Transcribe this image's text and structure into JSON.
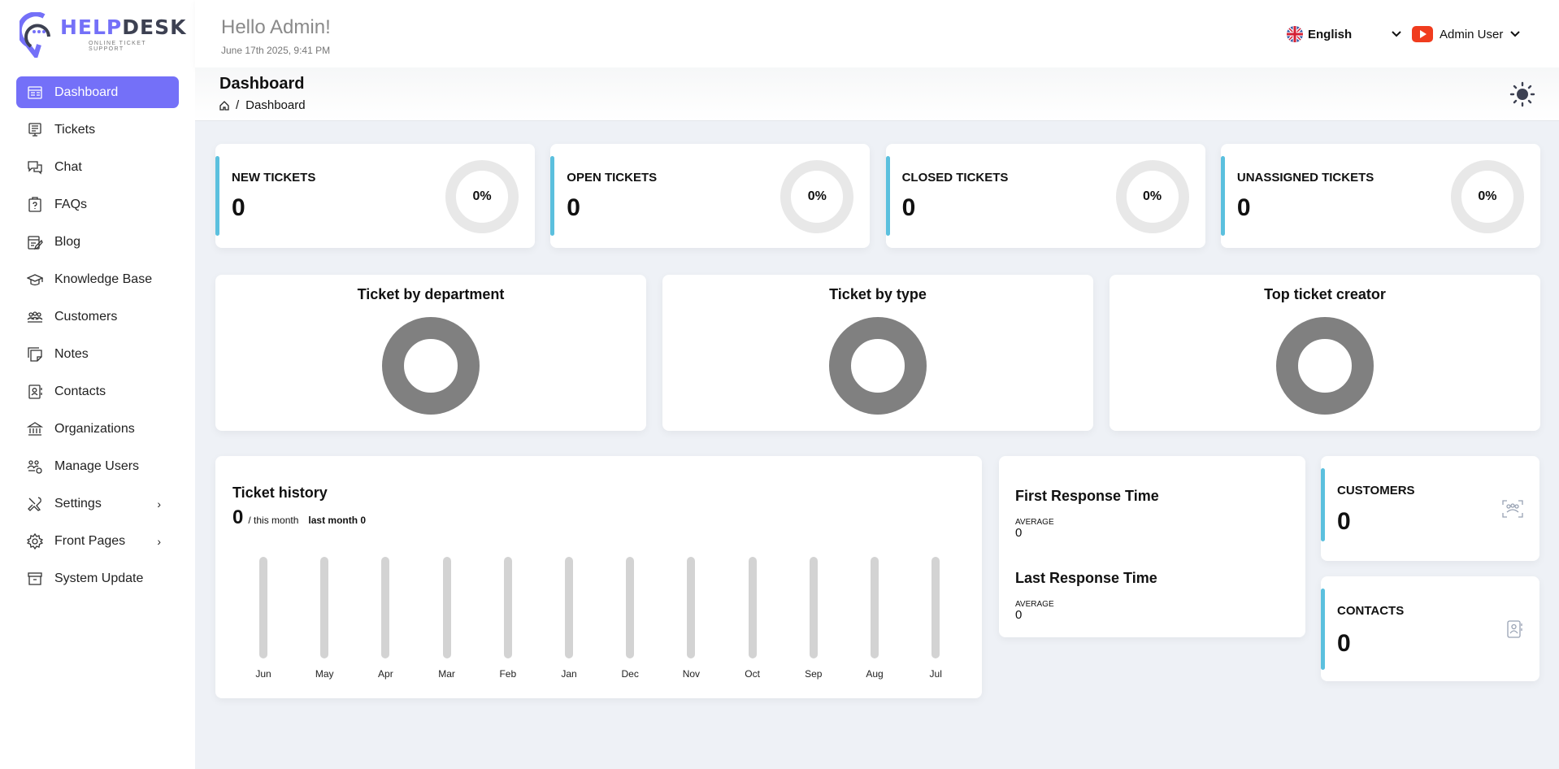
{
  "brand": {
    "name_part1": "HELP",
    "name_part2": "DESK",
    "tagline": "ONLINE TICKET SUPPORT",
    "primary": "#7470f8",
    "dark": "#3d4152"
  },
  "header": {
    "greeting": "Hello Admin!",
    "datetime": "June 17th 2025, 9:41 PM",
    "language": "English",
    "user": "Admin User"
  },
  "page": {
    "title": "Dashboard",
    "breadcrumb": "Dashboard"
  },
  "sidebar": {
    "items": [
      {
        "label": "Dashboard",
        "icon": "dashboard-icon",
        "active": true
      },
      {
        "label": "Tickets",
        "icon": "tickets-icon"
      },
      {
        "label": "Chat",
        "icon": "chat-icon"
      },
      {
        "label": "FAQs",
        "icon": "faq-icon"
      },
      {
        "label": "Blog",
        "icon": "blog-icon"
      },
      {
        "label": "Knowledge Base",
        "icon": "graduation-cap-icon"
      },
      {
        "label": "Customers",
        "icon": "customers-icon"
      },
      {
        "label": "Notes",
        "icon": "notes-icon"
      },
      {
        "label": "Contacts",
        "icon": "contacts-icon"
      },
      {
        "label": "Organizations",
        "icon": "bank-icon"
      },
      {
        "label": "Manage Users",
        "icon": "users-gear-icon"
      },
      {
        "label": "Settings",
        "icon": "tools-icon",
        "submenu": true
      },
      {
        "label": "Front Pages",
        "icon": "gear-icon",
        "submenu": true
      },
      {
        "label": "System Update",
        "icon": "archive-icon"
      }
    ]
  },
  "stats": [
    {
      "label": "NEW TICKETS",
      "value": "0",
      "percent": "0%"
    },
    {
      "label": "OPEN TICKETS",
      "value": "0",
      "percent": "0%"
    },
    {
      "label": "CLOSED TICKETS",
      "value": "0",
      "percent": "0%"
    },
    {
      "label": "UNASSIGNED TICKETS",
      "value": "0",
      "percent": "0%"
    }
  ],
  "charts": [
    {
      "title": "Ticket by department"
    },
    {
      "title": "Ticket by type"
    },
    {
      "title": "Top ticket creator"
    }
  ],
  "history": {
    "title": "Ticket history",
    "count": "0",
    "this_month": "/ this month",
    "last_month": "last month 0",
    "chart_data": {
      "type": "bar",
      "categories": [
        "Jun",
        "May",
        "Apr",
        "Mar",
        "Feb",
        "Jan",
        "Dec",
        "Nov",
        "Oct",
        "Sep",
        "Aug",
        "Jul"
      ],
      "values": [
        0,
        0,
        0,
        0,
        0,
        0,
        0,
        0,
        0,
        0,
        0,
        0
      ]
    }
  },
  "response": {
    "first_title": "First Response Time",
    "first_label": "AVERAGE",
    "first_value": "0",
    "last_title": "Last Response Time",
    "last_label": "AVERAGE",
    "last_value": "0"
  },
  "customers": {
    "label": "CUSTOMERS",
    "value": "0"
  },
  "contacts": {
    "label": "CONTACTS",
    "value": "0"
  },
  "colors": {
    "accent": "#5bc0de",
    "background": "#eef1f6",
    "donut": "#808080"
  }
}
